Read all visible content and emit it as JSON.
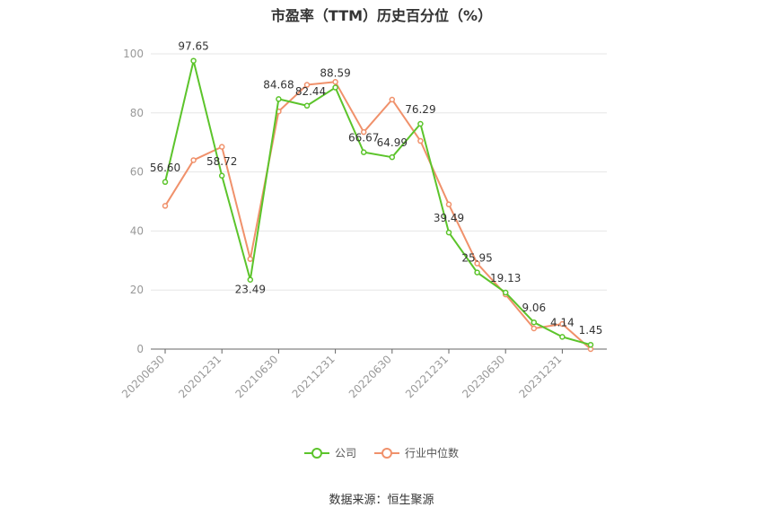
{
  "chart_data": {
    "type": "line",
    "title": "市盈率（TTM）历史百分位（%）",
    "xlabel": "",
    "ylabel": "",
    "ylim": [
      0,
      100
    ],
    "yticks": [
      0,
      20,
      40,
      60,
      80,
      100
    ],
    "grid": true,
    "legend_position": "bottom",
    "categories": [
      "20200630",
      "",
      "20201231",
      "",
      "20210630",
      "",
      "20211231",
      "",
      "20220630",
      "",
      "20221231",
      "",
      "20230630",
      "",
      "20231231",
      ""
    ],
    "x_tick_labels": [
      "20200630",
      "20201231",
      "20210630",
      "20211231",
      "20220630",
      "20221231",
      "20230630",
      "20231231"
    ],
    "series": [
      {
        "name": "公司",
        "color": "#5cc42b",
        "values": [
          56.6,
          97.65,
          58.72,
          23.49,
          84.68,
          82.44,
          88.59,
          66.67,
          64.99,
          76.29,
          39.49,
          25.95,
          19.13,
          9.06,
          4.14,
          1.45
        ],
        "labels": [
          "56.60",
          "97.65",
          "58.72",
          "23.49",
          "84.68",
          "82.44",
          "88.59",
          "66.67",
          "64.99",
          "76.29",
          "39.49",
          "25.95",
          "19.13",
          "9.06",
          "4.14",
          "1.45"
        ]
      },
      {
        "name": "行业中位数",
        "color": "#f0916b",
        "values": [
          48.5,
          64.0,
          68.5,
          30.5,
          80.5,
          89.5,
          90.5,
          73.5,
          84.5,
          70.5,
          49.0,
          29.0,
          18.5,
          7.0,
          8.5,
          0.0
        ]
      }
    ]
  },
  "source": "数据来源：恒生聚源"
}
